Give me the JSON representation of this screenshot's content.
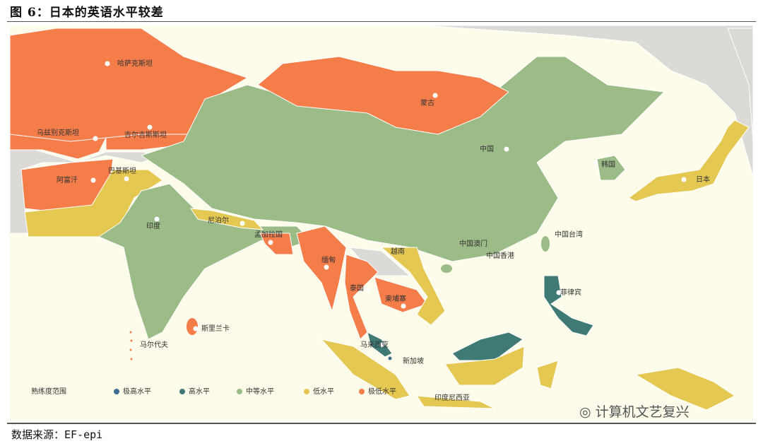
{
  "title": "图 6：日本的英语水平较差",
  "source": "数据来源：EF-epi",
  "watermark": "计算机文艺复兴",
  "colors": {
    "very_high": "#3d6e8f",
    "high": "#3f7b74",
    "moderate": "#9bbb87",
    "low": "#e5c852",
    "very_low": "#f47d4a",
    "other_land": "#dcdad6",
    "sea": "#fdfbea"
  },
  "legend": {
    "title": "熟练度范围",
    "items": [
      {
        "label": "极高水平",
        "color": "#3d6e8f"
      },
      {
        "label": "高水平",
        "color": "#3f7b74"
      },
      {
        "label": "中等水平",
        "color": "#9bbb87"
      },
      {
        "label": "低水平",
        "color": "#e5c852"
      },
      {
        "label": "极低水平",
        "color": "#f47d4a"
      }
    ]
  },
  "countries": {
    "kazakhstan": {
      "name": "哈萨克斯坦",
      "level": "极低水平"
    },
    "uzbekistan": {
      "name": "乌兹别克斯坦",
      "level": "极低水平"
    },
    "kyrgyzstan": {
      "name": "吉尔吉斯斯坦",
      "level": "极低水平"
    },
    "afghanistan": {
      "name": "阿富汗",
      "level": "极低水平"
    },
    "pakistan": {
      "name": "巴基斯坦",
      "level": "低水平"
    },
    "india": {
      "name": "印度",
      "level": "中等水平"
    },
    "nepal": {
      "name": "尼泊尔",
      "level": "低水平"
    },
    "bangladesh": {
      "name": "孟加拉国",
      "level": "极低水平"
    },
    "mongolia": {
      "name": "蒙古",
      "level": "极低水平"
    },
    "china": {
      "name": "中国",
      "level": "中等水平"
    },
    "korea": {
      "name": "韩国",
      "level": "中等水平"
    },
    "japan": {
      "name": "日本",
      "level": "低水平"
    },
    "taiwan": {
      "name": "中国台湾",
      "level": "中等水平"
    },
    "macau": {
      "name": "中国澳门",
      "level": "中等水平"
    },
    "hongkong": {
      "name": "中国香港",
      "level": "中等水平"
    },
    "vietnam": {
      "name": "越南",
      "level": "低水平"
    },
    "myanmar": {
      "name": "缅甸",
      "level": "极低水平"
    },
    "thailand": {
      "name": "泰国",
      "level": "极低水平"
    },
    "cambodia": {
      "name": "柬埔寨",
      "level": "极低水平"
    },
    "philippines": {
      "name": "菲律宾",
      "level": "高水平"
    },
    "malaysia": {
      "name": "马来西亚",
      "level": "高水平"
    },
    "singapore": {
      "name": "新加坡",
      "level": "极高水平"
    },
    "indonesia": {
      "name": "印度尼西亚",
      "level": "低水平"
    },
    "srilanka": {
      "name": "斯里兰卡",
      "level": "极低水平"
    },
    "maldives": {
      "name": "马尔代夫",
      "level": ""
    }
  }
}
